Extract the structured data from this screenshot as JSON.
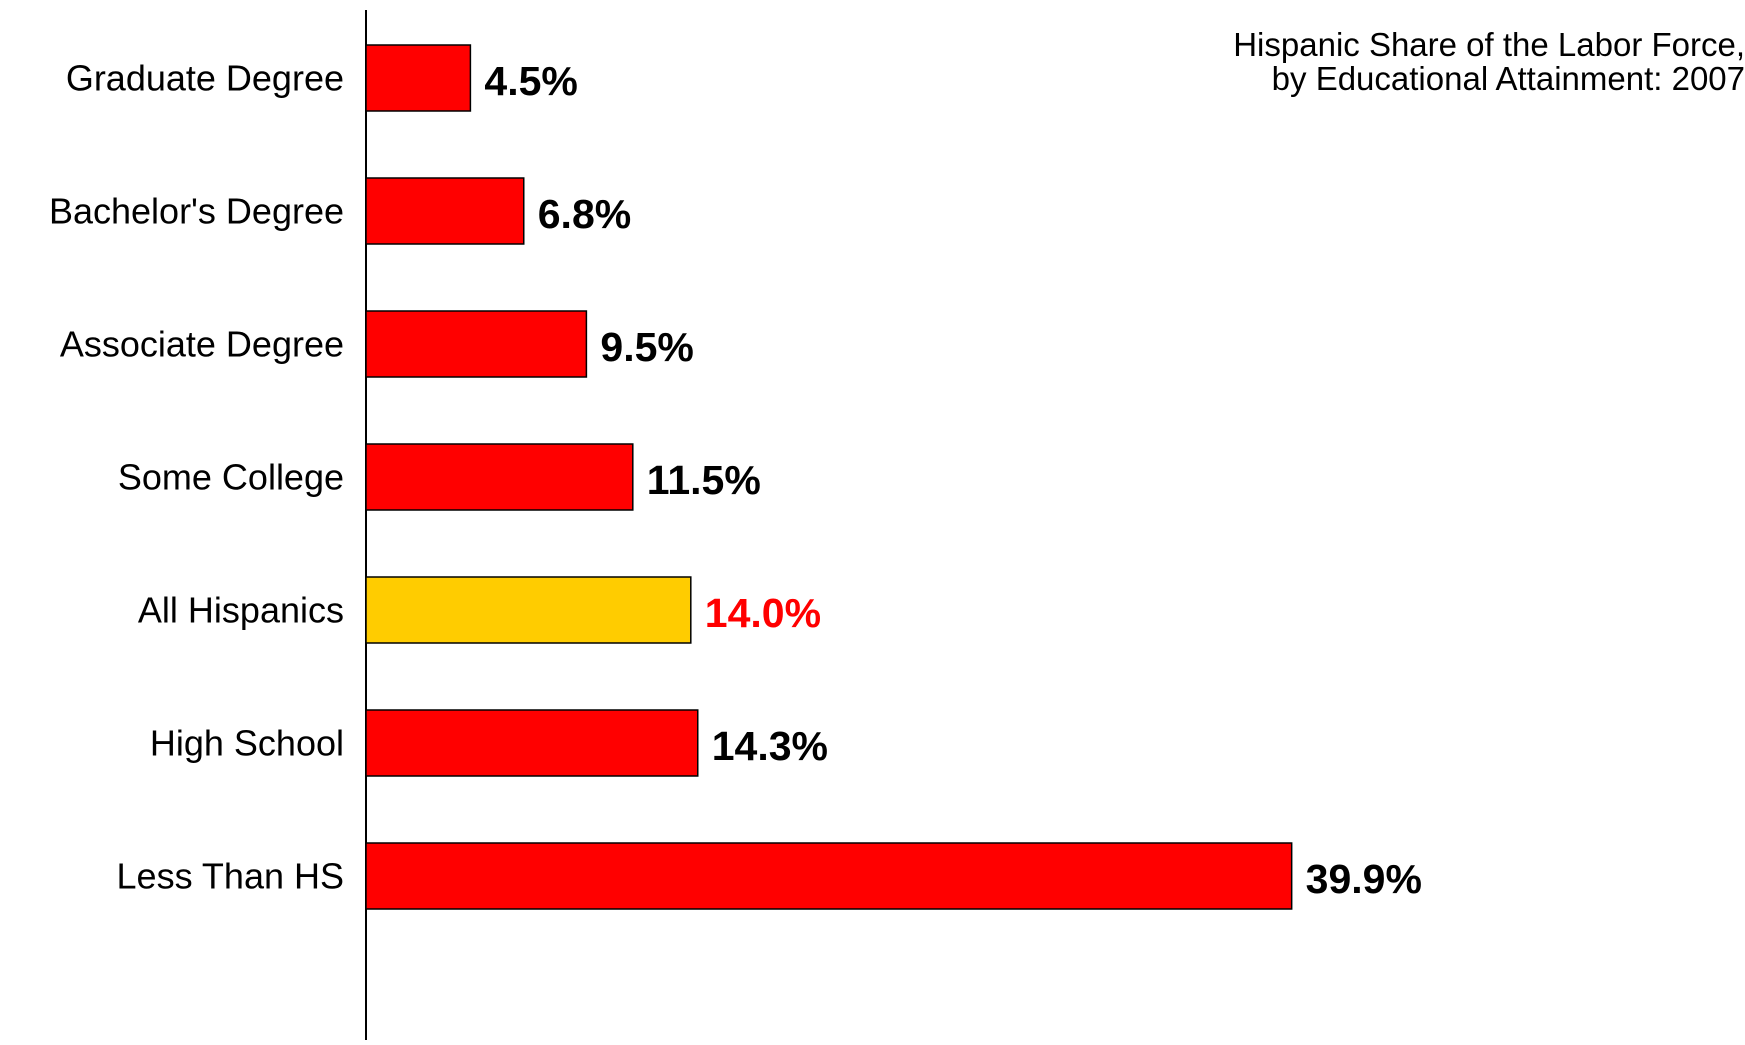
{
  "chart_data": {
    "type": "bar",
    "orientation": "horizontal",
    "title": "Hispanic Share of the Labor Force,",
    "subtitle": "by Educational Attainment: 2007",
    "xlabel": "",
    "ylabel": "",
    "value_suffix": "%",
    "xlim": [
      0,
      45
    ],
    "grid": false,
    "legend": "none",
    "categories": [
      "Graduate Degree",
      "Bachelor's Degree",
      "Associate Degree",
      "Some College",
      "All Hispanics",
      "High School",
      "Less Than HS"
    ],
    "values": [
      4.5,
      6.8,
      9.5,
      11.5,
      14.0,
      14.3,
      39.9
    ],
    "value_labels": [
      "4.5%",
      "6.8%",
      "9.5%",
      "11.5%",
      "14.0%",
      "14.3%",
      "39.9%"
    ],
    "highlight_category": "All Hispanics",
    "colors": {
      "bar": "#ff0000",
      "highlight_bar": "#ffcc00",
      "label": "#000000",
      "highlight_label": "#ff0000",
      "axis": "#000000"
    }
  }
}
